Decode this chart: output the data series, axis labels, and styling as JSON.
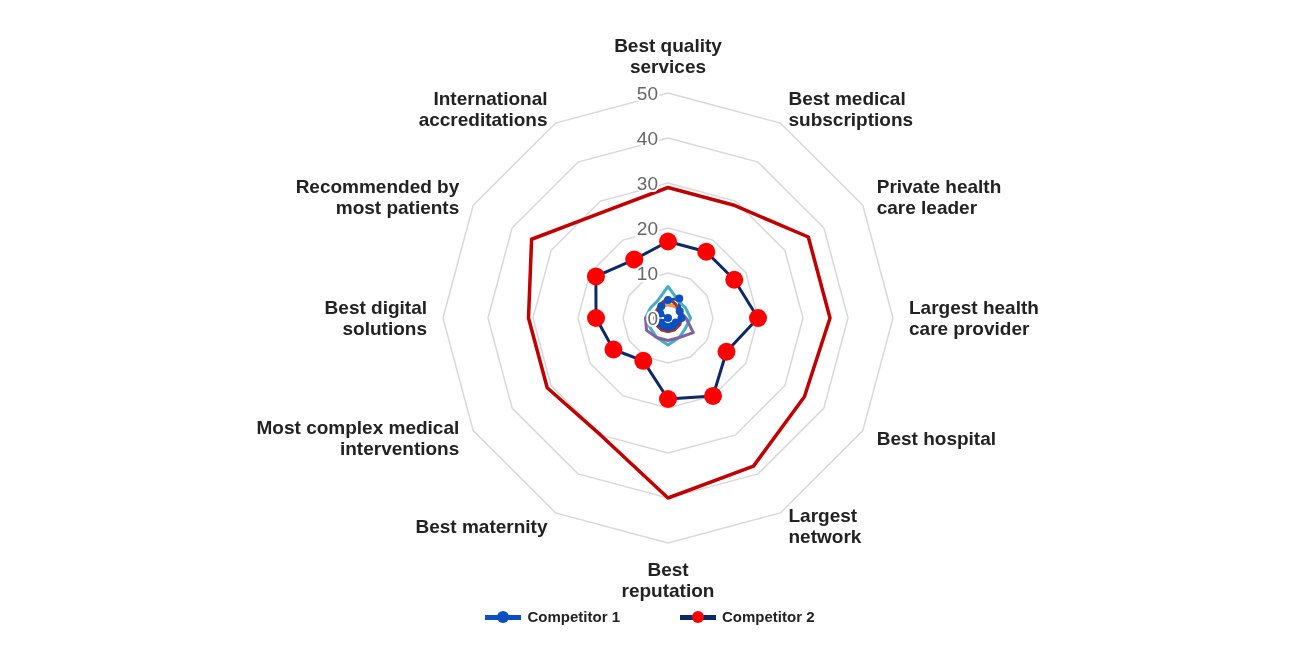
{
  "chart_data": {
    "type": "radar",
    "categories": [
      "Best quality services",
      "Best medical subscriptions",
      "Private health care leader",
      "Largest health care provider",
      "Best hospital",
      "Largest network",
      "Best reputation",
      "Best maternity",
      "Most complex medical interventions",
      "Best digital solutions",
      "Recommended by most patients",
      "International accreditations"
    ],
    "ylim": [
      0,
      50
    ],
    "yticks": [
      0,
      10,
      20,
      30,
      40,
      50
    ],
    "grid": true,
    "legend": "bottom",
    "series": [
      {
        "color": "#c00000",
        "marker": "none",
        "values": [
          29,
          29,
          36,
          36,
          35,
          38,
          40,
          30,
          31,
          31,
          35,
          27.5
        ]
      },
      {
        "name": "Competitor 1",
        "color": "#0b4fc0",
        "marker": "circle",
        "values": [
          4,
          5,
          3,
          3,
          2,
          2,
          2,
          2,
          2,
          null,
          2,
          3
        ]
      },
      {
        "name": "Competitor 2",
        "color": "#0d2a66",
        "marker": "circle",
        "colors": [
          "#ff0000",
          "#ff0000",
          "#ff0000",
          "#ff0000",
          "#ff0000",
          "#ff0000",
          "#ff0000",
          "#ff0000",
          "#ff0000",
          "#ff0000",
          "#ff0000",
          "#ff0000"
        ],
        "values": [
          17,
          17,
          17,
          20,
          15,
          20,
          18,
          11,
          14,
          16,
          18.5,
          15
        ]
      },
      {
        "color": "#4bacc6",
        "marker": "none",
        "values": [
          7,
          4.5,
          4.5,
          5,
          4.5,
          5,
          6,
          5,
          4.5,
          5,
          4.5,
          4.5
        ]
      },
      {
        "color": "#8064a2",
        "marker": "none",
        "values": [
          3,
          3,
          3,
          4,
          6.5,
          5,
          5,
          5,
          5.5,
          5,
          3,
          3
        ]
      },
      {
        "color": "#f79646",
        "marker": "none",
        "values": [
          3,
          3,
          3,
          3,
          3,
          3,
          3,
          3,
          3,
          3,
          3,
          3
        ]
      },
      {
        "color": "#943634",
        "marker": "none",
        "values": [
          4.5,
          3.5,
          3,
          3,
          3,
          3,
          3,
          3,
          3,
          3,
          3,
          3.5
        ]
      }
    ]
  }
}
